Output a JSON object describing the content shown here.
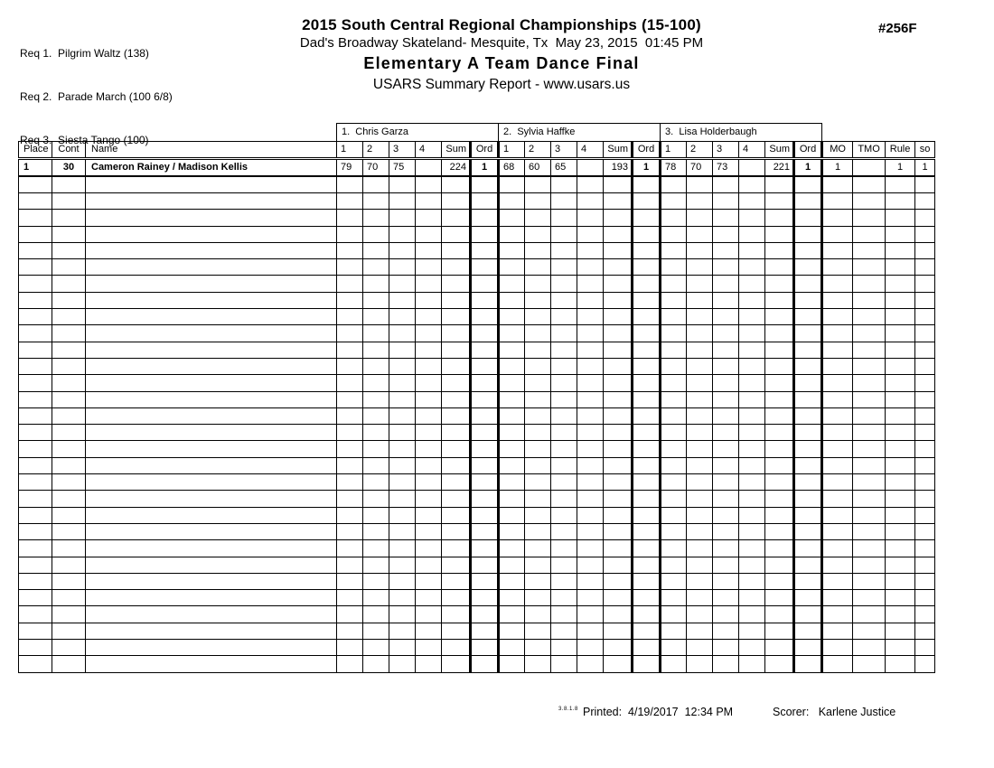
{
  "header": {
    "requirements": [
      "Req 1.  Pilgrim Waltz (138)",
      "Req 2.  Parade March (100 6/8)",
      "Req 3.  Siesta Tango (100)"
    ],
    "title": "2015 South Central Regional Championships (15-100)",
    "venue_line": "Dad's Broadway Skateland- Mesquite, Tx  May 23, 2015  01:45 PM",
    "event_title": "Elementary A Team Dance Final",
    "report_line": "USARS Summary Report - www.usars.us",
    "event_number": "#256F"
  },
  "table": {
    "left_columns": [
      "Place",
      "Cont",
      "Name"
    ],
    "judge_cols": [
      "1",
      "2",
      "3",
      "4",
      "Sum",
      "Ord"
    ],
    "right_columns": [
      "MO",
      "TMO",
      "Rule",
      "so"
    ],
    "judges": [
      "1.  Chris Garza",
      "2.  Sylvia Haffke",
      "3.  Lisa Holderbaugh"
    ],
    "rows": [
      {
        "place": "1",
        "cont": "30",
        "name": "Cameron Rainey / Madison Kellis",
        "judges": [
          {
            "scores": [
              "79",
              "70",
              "75",
              ""
            ],
            "sum": "224",
            "ord": "1"
          },
          {
            "scores": [
              "68",
              "60",
              "65",
              ""
            ],
            "sum": "193",
            "ord": "1"
          },
          {
            "scores": [
              "78",
              "70",
              "73",
              ""
            ],
            "sum": "221",
            "ord": "1"
          }
        ],
        "mo": "1",
        "tmo": "",
        "rule": "1",
        "so": "1"
      }
    ],
    "empty_row_count": 30
  },
  "footer": {
    "version": "3.8.1.8",
    "printed_line": "Printed:  4/19/2017  12:34 PM",
    "scorer_line": "Scorer:   Karlene Justice"
  }
}
